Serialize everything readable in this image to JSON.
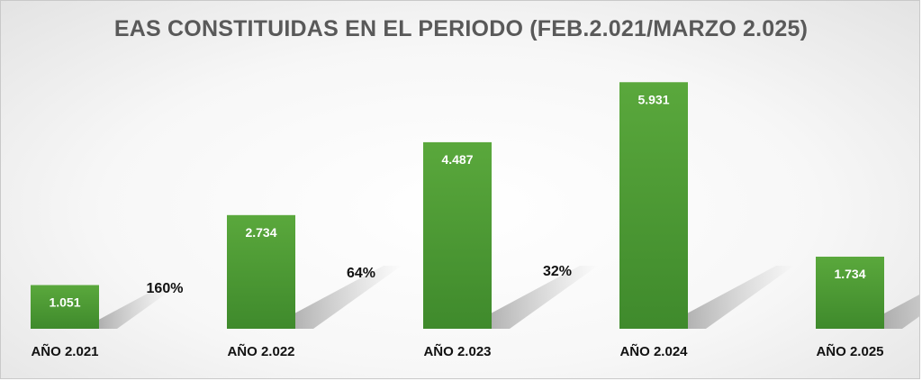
{
  "chart_data": {
    "type": "bar",
    "title": "EAS CONSTITUIDAS EN EL PERIODO (FEB.2.021/MARZO 2.025)",
    "xlabel": "",
    "ylabel": "",
    "categories": [
      "AÑO 2.021",
      "AÑO 2.022",
      "AÑO 2.023",
      "AÑO 2.024",
      "AÑO 2.025"
    ],
    "values": [
      1051,
      2734,
      4487,
      5931,
      1734
    ],
    "value_labels": [
      "1.051",
      "2.734",
      "4.487",
      "5.931",
      "1.734"
    ],
    "ylim": [
      0,
      6500
    ],
    "grid": false,
    "legend": "none",
    "bar_color": "#4c9a35",
    "annotations": [
      "160%",
      "64%",
      "32%"
    ]
  }
}
